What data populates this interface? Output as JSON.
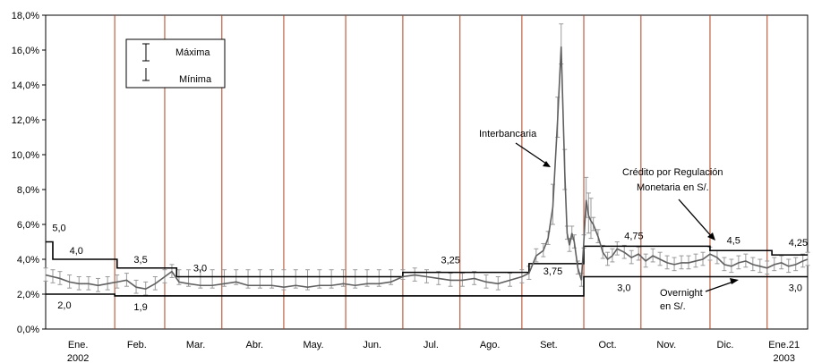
{
  "chart_data": {
    "type": "line",
    "ylim": [
      0,
      18
    ],
    "y_ticks": [
      "0,0%",
      "2,0%",
      "4,0%",
      "6,0%",
      "8,0%",
      "10,0%",
      "12,0%",
      "14,0%",
      "16,0%",
      "18,0%"
    ],
    "y_tick_values": [
      0,
      2,
      4,
      6,
      8,
      10,
      12,
      14,
      16,
      18
    ],
    "month_labels": [
      "Ene.",
      "Feb.",
      "Mar.",
      "Abr.",
      "May.",
      "Jun.",
      "Jul.",
      "Ago.",
      "Set.",
      "Oct.",
      "Nov.",
      "Dic.",
      "Ene.21"
    ],
    "year_labels": [
      "2002",
      "2003"
    ],
    "grid": false,
    "legend": {
      "position": "top-left",
      "max_label": "Máxima",
      "min_label": "Mínima"
    },
    "annotations": {
      "interbancaria": "Interbancaria",
      "credito_line1": "Crédito por Regulación",
      "credito_line2": "Monetaria en S/.",
      "overnight_line1": "Overnight",
      "overnight_line2": "en S/."
    },
    "series": [
      {
        "name": "Crédito por Regulación Monetaria en S/.",
        "segments": [
          {
            "x0": 0.0,
            "x1": 0.3,
            "y": 5.0
          },
          {
            "x0": 0.3,
            "x1": 3.0,
            "y": 4.0
          },
          {
            "x0": 3.0,
            "x1": 5.5,
            "y": 3.5
          },
          {
            "x0": 5.5,
            "x1": 15.0,
            "y": 3.0
          },
          {
            "x0": 15.0,
            "x1": 20.3,
            "y": 3.25
          },
          {
            "x0": 20.3,
            "x1": 22.6,
            "y": 3.75
          },
          {
            "x0": 22.6,
            "x1": 27.9,
            "y": 4.75
          },
          {
            "x0": 27.9,
            "x1": 30.5,
            "y": 4.5
          },
          {
            "x0": 30.5,
            "x1": 32.0,
            "y": 4.25
          }
        ]
      },
      {
        "name": "Overnight en S/.",
        "segments": [
          {
            "x0": 0.0,
            "x1": 2.9,
            "y": 2.0
          },
          {
            "x0": 2.9,
            "x1": 22.6,
            "y": 1.9
          },
          {
            "x0": 22.6,
            "x1": 32.0,
            "y": 3.0
          }
        ]
      },
      {
        "name": "Interbancaria",
        "x": [
          0.0,
          0.3,
          0.6,
          1.0,
          1.4,
          1.8,
          2.2,
          2.6,
          3.0,
          3.4,
          3.8,
          4.2,
          4.6,
          5.0,
          5.3,
          5.6,
          6.0,
          6.5,
          7.0,
          7.5,
          8.0,
          8.5,
          9.0,
          9.5,
          10.0,
          10.5,
          11.0,
          11.5,
          12.0,
          12.5,
          13.0,
          13.5,
          14.0,
          14.5,
          15.0,
          15.5,
          16.0,
          16.5,
          17.0,
          17.5,
          18.0,
          18.5,
          19.0,
          19.5,
          20.0,
          20.3,
          20.6,
          20.9,
          21.1,
          21.3,
          21.5,
          21.65,
          21.8,
          21.9,
          22.0,
          22.1,
          22.2,
          22.35,
          22.5,
          22.6,
          22.7,
          22.8,
          22.9,
          23.0,
          23.2,
          23.4,
          23.6,
          23.8,
          24.0,
          24.3,
          24.6,
          24.9,
          25.2,
          25.5,
          25.8,
          26.1,
          26.4,
          26.7,
          27.0,
          27.3,
          27.6,
          27.9,
          28.2,
          28.5,
          28.8,
          29.1,
          29.4,
          29.7,
          30.0,
          30.3,
          30.6,
          30.9,
          31.2,
          31.5,
          31.8,
          32.0
        ],
        "values": [
          3.1,
          3.0,
          2.9,
          2.7,
          2.6,
          2.6,
          2.5,
          2.6,
          2.7,
          2.8,
          2.4,
          2.3,
          2.6,
          3.0,
          3.3,
          2.7,
          2.6,
          2.5,
          2.5,
          2.6,
          2.7,
          2.5,
          2.5,
          2.5,
          2.4,
          2.5,
          2.4,
          2.5,
          2.5,
          2.6,
          2.5,
          2.6,
          2.6,
          2.7,
          3.0,
          3.1,
          3.0,
          2.9,
          2.8,
          2.8,
          2.9,
          2.7,
          2.6,
          2.8,
          3.0,
          3.2,
          4.2,
          4.5,
          5.2,
          7.0,
          12.0,
          16.2,
          9.0,
          5.5,
          4.8,
          5.5,
          5.0,
          3.5,
          2.8,
          5.0,
          7.4,
          6.5,
          6.2,
          6.0,
          5.3,
          4.4,
          4.0,
          4.2,
          4.6,
          4.4,
          4.1,
          4.3,
          3.9,
          4.2,
          4.0,
          3.8,
          3.7,
          3.8,
          3.8,
          3.9,
          4.0,
          4.3,
          4.1,
          3.7,
          3.6,
          3.8,
          3.9,
          3.7,
          3.6,
          3.5,
          3.7,
          3.8,
          3.6,
          3.7,
          3.9,
          4.0
        ]
      }
    ],
    "step_labels": [
      {
        "text": "5,0",
        "x": 0.05,
        "y": 5.0
      },
      {
        "text": "4,0",
        "x": 1.0,
        "y": 4.0
      },
      {
        "text": "3,5",
        "x": 3.7,
        "y": 3.5
      },
      {
        "text": "3,0",
        "x": 6.2,
        "y": 3.0
      },
      {
        "text": "3,25",
        "x": 16.6,
        "y": 3.25
      },
      {
        "text": "3,75",
        "x": 20.9,
        "y": 3.75
      },
      {
        "text": "4,75",
        "x": 24.3,
        "y": 4.75
      },
      {
        "text": "4,5",
        "x": 28.6,
        "y": 4.5
      },
      {
        "text": "4,25",
        "x": 31.2,
        "y": 4.25
      },
      {
        "text": "2,0",
        "x": 0.5,
        "y": 2.0
      },
      {
        "text": "1,9",
        "x": 3.7,
        "y": 1.9
      },
      {
        "text": "3,0",
        "x": 24.0,
        "y": 3.0
      },
      {
        "text": "3,0",
        "x": 31.2,
        "y": 3.0
      }
    ],
    "x_range": [
      0,
      32
    ],
    "vertical_markers": [
      2.9,
      5.0,
      7.4,
      10.0,
      12.6,
      15.0,
      17.4,
      20.0,
      22.6,
      25.0,
      27.9,
      30.3
    ]
  }
}
